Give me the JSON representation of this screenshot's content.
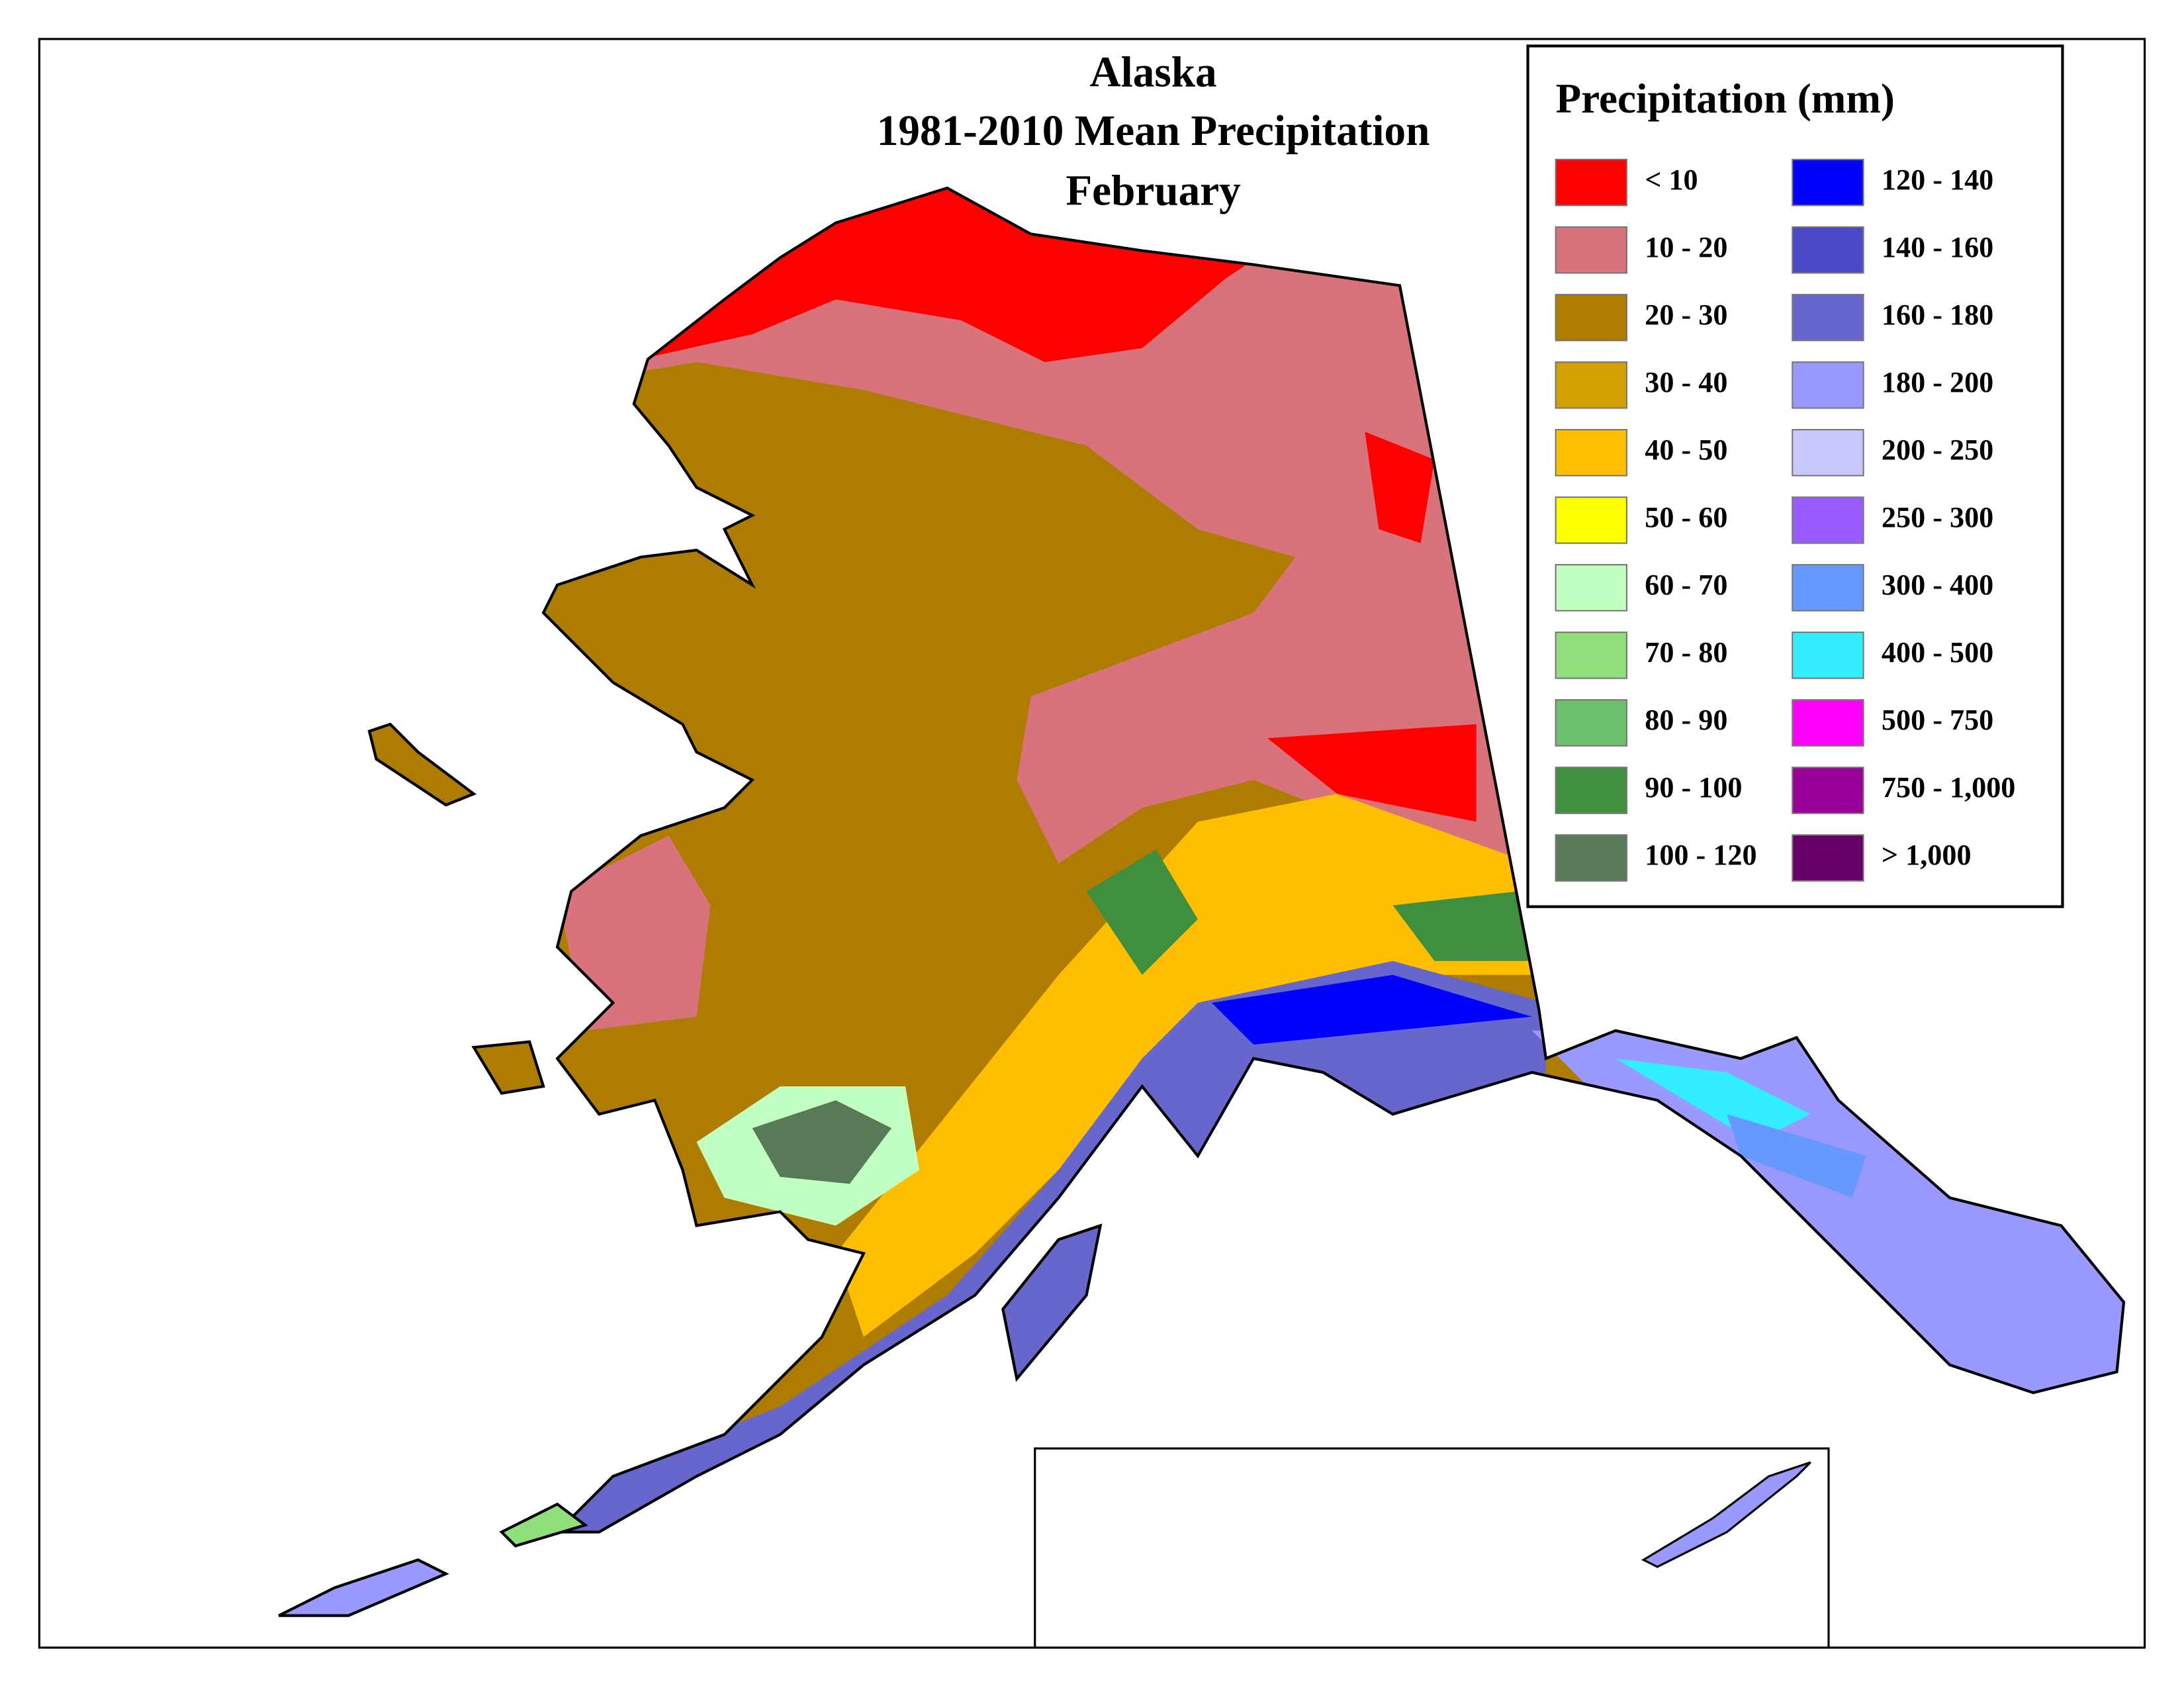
{
  "map": {
    "title": [
      "Alaska",
      "1981-2010 Mean Precipitation",
      "February"
    ],
    "legend": {
      "title": "Precipitation (mm)",
      "items": [
        {
          "label": "< 10",
          "color": "#ff0000"
        },
        {
          "label": "10 - 20",
          "color": "#d9737b"
        },
        {
          "label": "20 - 30",
          "color": "#ad7c00"
        },
        {
          "label": "30 - 40",
          "color": "#d4a000"
        },
        {
          "label": "40 - 50",
          "color": "#ffbf00"
        },
        {
          "label": "50 - 60",
          "color": "#ffff00"
        },
        {
          "label": "60 - 70",
          "color": "#c0ffc0"
        },
        {
          "label": "70 - 80",
          "color": "#8fe07a"
        },
        {
          "label": "80 - 90",
          "color": "#6cc06c"
        },
        {
          "label": "90 - 100",
          "color": "#3f8f3f"
        },
        {
          "label": "100 - 120",
          "color": "#597a59"
        },
        {
          "label": "120 - 140",
          "color": "#0000ff"
        },
        {
          "label": "140 - 160",
          "color": "#4a4ac8"
        },
        {
          "label": "160 - 180",
          "color": "#6666cc"
        },
        {
          "label": "180 - 200",
          "color": "#9999ff"
        },
        {
          "label": "200 - 250",
          "color": "#c8c8ff"
        },
        {
          "label": "250 - 300",
          "color": "#9a5cff"
        },
        {
          "label": "300 - 400",
          "color": "#6699ff"
        },
        {
          "label": "400 - 500",
          "color": "#33eeff"
        },
        {
          "label": "500 - 750",
          "color": "#ff00ff"
        },
        {
          "label": "750 - 1,000",
          "color": "#990099"
        },
        {
          "label": "> 1,000",
          "color": "#660066"
        }
      ]
    }
  }
}
